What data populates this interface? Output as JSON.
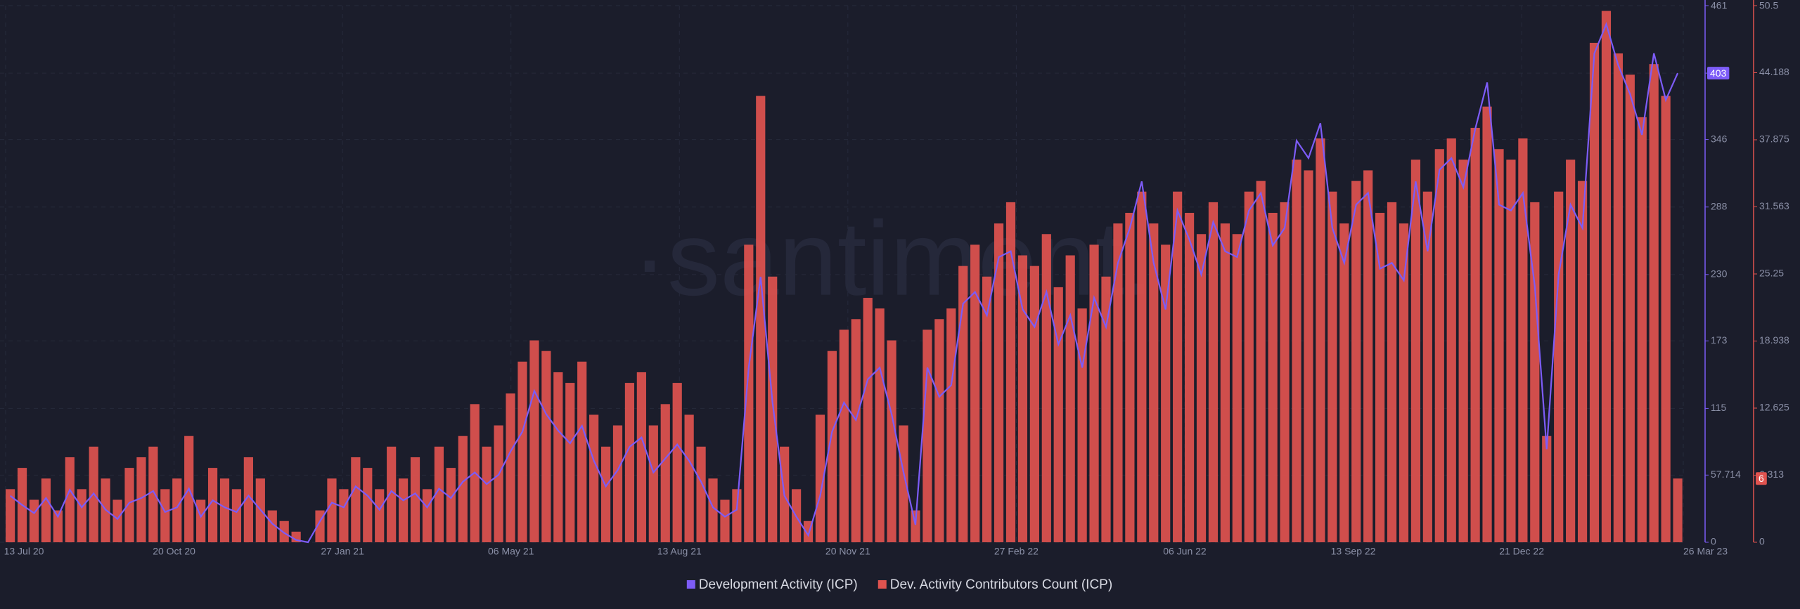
{
  "chart_data": {
    "type": "bar-line",
    "watermark": "·santiment.",
    "x": [
      "13 Jul 20",
      "20 Jul 20",
      "27 Jul 20",
      "03 Aug 20",
      "10 Aug 20",
      "17 Aug 20",
      "24 Aug 20",
      "31 Aug 20",
      "07 Sep 20",
      "14 Sep 20",
      "21 Sep 20",
      "28 Sep 20",
      "05 Oct 20",
      "12 Oct 20",
      "19 Oct 20",
      "26 Oct 20",
      "02 Nov 20",
      "09 Nov 20",
      "16 Nov 20",
      "23 Nov 20",
      "30 Nov 20",
      "07 Dec 20",
      "14 Dec 20",
      "21 Dec 20",
      "28 Dec 20",
      "04 Jan 21",
      "11 Jan 21",
      "18 Jan 21",
      "25 Jan 21",
      "01 Feb 21",
      "08 Feb 21",
      "15 Feb 21",
      "22 Feb 21",
      "01 Mar 21",
      "08 Mar 21",
      "15 Mar 21",
      "22 Mar 21",
      "29 Mar 21",
      "05 Apr 21",
      "12 Apr 21",
      "19 Apr 21",
      "26 Apr 21",
      "03 May 21",
      "10 May 21",
      "17 May 21",
      "24 May 21",
      "31 May 21",
      "07 Jun 21",
      "14 Jun 21",
      "21 Jun 21",
      "28 Jun 21",
      "05 Jul 21",
      "12 Jul 21",
      "19 Jul 21",
      "26 Jul 21",
      "02 Aug 21",
      "09 Aug 21",
      "16 Aug 21",
      "23 Aug 21",
      "30 Aug 21",
      "06 Sep 21",
      "13 Sep 21",
      "20 Sep 21",
      "27 Sep 21",
      "04 Oct 21",
      "11 Oct 21",
      "18 Oct 21",
      "25 Oct 21",
      "01 Nov 21",
      "08 Nov 21",
      "15 Nov 21",
      "22 Nov 21",
      "29 Nov 21",
      "06 Dec 21",
      "13 Dec 21",
      "20 Dec 21",
      "27 Dec 21",
      "03 Jan 22",
      "10 Jan 22",
      "17 Jan 22",
      "24 Jan 22",
      "31 Jan 22",
      "07 Feb 22",
      "14 Feb 22",
      "21 Feb 22",
      "28 Feb 22",
      "07 Mar 22",
      "14 Mar 22",
      "21 Mar 22",
      "28 Mar 22",
      "04 Apr 22",
      "11 Apr 22",
      "18 Apr 22",
      "25 Apr 22",
      "02 May 22",
      "09 May 22",
      "16 May 22",
      "23 May 22",
      "30 May 22",
      "06 Jun 22",
      "13 Jun 22",
      "20 Jun 22",
      "27 Jun 22",
      "04 Jul 22",
      "11 Jul 22",
      "18 Jul 22",
      "25 Jul 22",
      "01 Aug 22",
      "08 Aug 22",
      "15 Aug 22",
      "22 Aug 22",
      "29 Aug 22",
      "05 Sep 22",
      "12 Sep 22",
      "19 Sep 22",
      "26 Sep 22",
      "03 Oct 22",
      "10 Oct 22",
      "17 Oct 22",
      "24 Oct 22",
      "31 Oct 22",
      "07 Nov 22",
      "14 Nov 22",
      "21 Nov 22",
      "28 Nov 22",
      "05 Dec 22",
      "12 Dec 22",
      "19 Dec 22",
      "26 Dec 22",
      "02 Jan 23",
      "09 Jan 23",
      "16 Jan 23",
      "23 Jan 23",
      "30 Jan 23",
      "06 Feb 23",
      "13 Feb 23",
      "20 Feb 23",
      "27 Feb 23",
      "06 Mar 23",
      "13 Mar 23",
      "20 Mar 23"
    ],
    "xlim": [
      "13 Jul 20",
      "26 Mar 23"
    ],
    "xticks": [
      "13 Jul 20",
      "20 Oct 20",
      "27 Jan 21",
      "06 May 21",
      "13 Aug 21",
      "20 Nov 21",
      "27 Feb 22",
      "06 Jun 22",
      "13 Sep 22",
      "21 Dec 22",
      "26 Mar 23"
    ],
    "ylim": [
      0,
      461
    ],
    "yticks": [
      0,
      57.714,
      115,
      173,
      230,
      288,
      346,
      403,
      461
    ],
    "y2lim": [
      0,
      50.5
    ],
    "y2ticks": [
      0,
      6.313,
      12.625,
      18.938,
      25.25,
      31.563,
      37.875,
      44.188,
      50.5
    ],
    "grid": true,
    "series": [
      {
        "name": "Development Activity (ICP)",
        "type": "line",
        "color": "#7d5cf7",
        "axis": "y",
        "values": [
          40,
          32,
          25,
          38,
          22,
          45,
          30,
          42,
          28,
          20,
          34,
          38,
          44,
          26,
          30,
          46,
          22,
          36,
          30,
          26,
          40,
          28,
          16,
          8,
          2,
          0,
          18,
          34,
          30,
          48,
          40,
          28,
          44,
          36,
          42,
          30,
          46,
          38,
          52,
          60,
          50,
          58,
          78,
          95,
          130,
          110,
          96,
          85,
          100,
          70,
          48,
          62,
          82,
          90,
          60,
          72,
          84,
          70,
          52,
          30,
          22,
          28,
          150,
          228,
          120,
          40,
          22,
          6,
          40,
          95,
          120,
          105,
          140,
          150,
          110,
          60,
          15,
          150,
          125,
          135,
          205,
          215,
          195,
          245,
          250,
          200,
          185,
          215,
          170,
          195,
          150,
          210,
          185,
          240,
          270,
          310,
          240,
          200,
          285,
          260,
          230,
          275,
          250,
          245,
          285,
          300,
          255,
          270,
          345,
          330,
          360,
          270,
          240,
          290,
          300,
          235,
          240,
          225,
          310,
          250,
          320,
          330,
          305,
          355,
          395,
          290,
          285,
          300,
          220,
          80,
          230,
          290,
          270,
          420,
          445,
          410,
          385,
          350,
          420,
          380,
          403
        ]
      },
      {
        "name": "Dev. Activity Contributors Count (ICP)",
        "type": "bar",
        "color": "#e0534f",
        "axis": "y2",
        "values": [
          5,
          7,
          4,
          6,
          3,
          8,
          5,
          9,
          6,
          4,
          7,
          8,
          9,
          5,
          6,
          10,
          4,
          7,
          6,
          5,
          8,
          6,
          3,
          2,
          1,
          0,
          3,
          6,
          5,
          8,
          7,
          5,
          9,
          6,
          8,
          5,
          9,
          7,
          10,
          13,
          9,
          11,
          14,
          17,
          19,
          18,
          16,
          15,
          17,
          12,
          9,
          11,
          15,
          16,
          11,
          13,
          15,
          12,
          9,
          6,
          4,
          5,
          28,
          42,
          25,
          9,
          5,
          2,
          12,
          18,
          20,
          21,
          23,
          22,
          19,
          11,
          3,
          20,
          21,
          22,
          26,
          28,
          25,
          30,
          32,
          27,
          26,
          29,
          24,
          27,
          22,
          28,
          25,
          30,
          31,
          33,
          30,
          28,
          33,
          31,
          29,
          32,
          30,
          29,
          33,
          34,
          31,
          32,
          36,
          35,
          38,
          33,
          30,
          34,
          35,
          31,
          32,
          30,
          36,
          33,
          37,
          38,
          36,
          39,
          41,
          37,
          36,
          38,
          32,
          10,
          33,
          36,
          34,
          47,
          50,
          46,
          44,
          40,
          45,
          42,
          6
        ]
      }
    ]
  }
}
